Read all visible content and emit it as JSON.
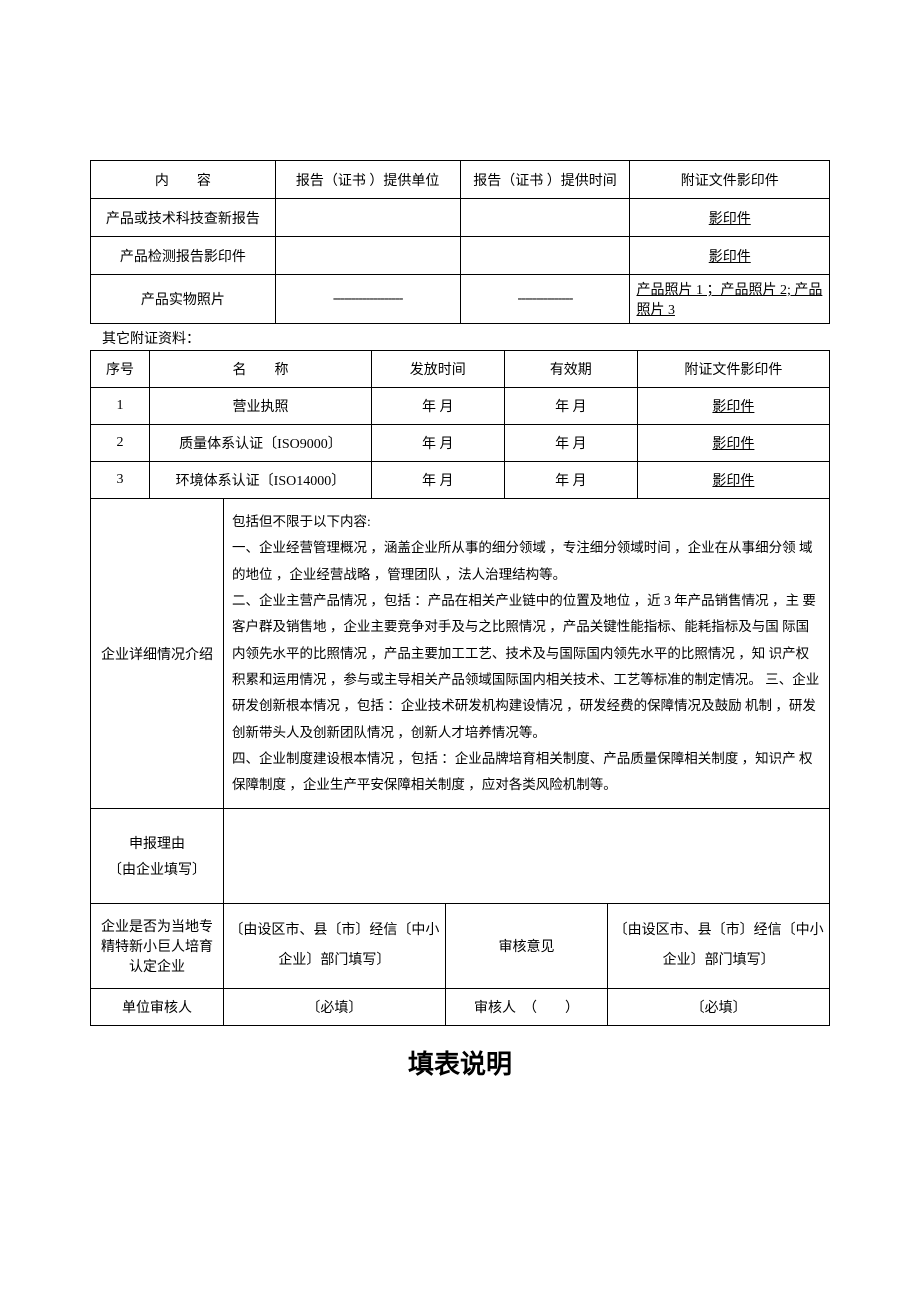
{
  "table1": {
    "headers": [
      "内　　容",
      "报告（证书 ）提供单位",
      "报告（证书 ）提供时间",
      "附证文件影印件"
    ],
    "rows": [
      {
        "content": "产品或技术科技查新报告",
        "provider": "",
        "time": "",
        "attach": "影印件",
        "attachUnderline": true
      },
      {
        "content": "产品检测报告影印件",
        "provider": "",
        "time": "",
        "attach": "影印件",
        "attachUnderline": true
      },
      {
        "content": "产品实物照片",
        "provider": "-------------------",
        "time": "---------------",
        "attach": "产品照片 1 ；产品照片 2; 产品照片 3",
        "attachUnderline": true,
        "attachLeft": true
      }
    ]
  },
  "otherLabel": "其它附证资料：",
  "table2": {
    "headers": [
      "序号",
      "名　　称",
      "发放时间",
      "有效期",
      "附证文件影印件"
    ],
    "rows": [
      {
        "seq": "1",
        "name": "营业执照",
        "issue": "年 月",
        "valid": "年 月",
        "attach": "影印件"
      },
      {
        "seq": "2",
        "name": "质量体系认证〔ISO9000〕",
        "issue": "年 月",
        "valid": "年 月",
        "attach": "影印件"
      },
      {
        "seq": "3",
        "name": "环境体系认证〔ISO14000〕",
        "issue": "年 月",
        "valid": "年 月",
        "attach": "影印件"
      }
    ]
  },
  "table3": {
    "detailLabel": "企业详细情况介绍",
    "detailText": "包括但不限于以下内容:\n一、企业经营管理概况 ，涵盖企业所从事的细分领域 ，专注细分领域时间 ，企业在从事细分领 域的地位 ，企业经营战略 ，管理团队 ，法人治理结构等。\n二、企业主营产品情况 ，包括 ：产品在相关产业链中的位置及地位 ，近 3 年产品销售情况 ，主 要客户群及销售地 ，企业主要竞争对手及与之比照情况 ，产品关键性能指标、能耗指标及与国 际国内领先水平的比照情况 ，产品主要加工工艺、技术及与国际国内领先水平的比照情况 ，知 识产权积累和运用情况 ，参与或主导相关产品领域国际国内相关技术、工艺等标准的制定情况。 三、企业研发创新根本情况 ，包括 ：企业技术研发机构建设情况 ，研发经费的保障情况及鼓励 机制 ，研发创新带头人及创新团队情况 ，创新人才培养情况等。\n四、企业制度建设根本情况 ，包括 ：企业品牌培育相关制度、产品质量保障相关制度 ，知识产 权保障制度 ，企业生产平安保障相关制度 ，应对各类风险机制等。",
    "reasonLabel1": "申报理由",
    "reasonLabel2": "〔由企业填写〕",
    "isLocalLabel": "企业是否为当地专精特新小巨人培育认定企业",
    "isLocalValue": "〔由设区市、县〔市〕经信〔中小企业〕部门填写〕",
    "reviewLabel": "审核意见",
    "reviewValue": "〔由设区市、县〔市〕经信〔中小企业〕部门填写〕",
    "unitReviewer": "单位审核人",
    "required1": "〔必填〕",
    "reviewer": "审核人　（　　）",
    "required2": "〔必填〕"
  },
  "bigTitle": "填表说明"
}
